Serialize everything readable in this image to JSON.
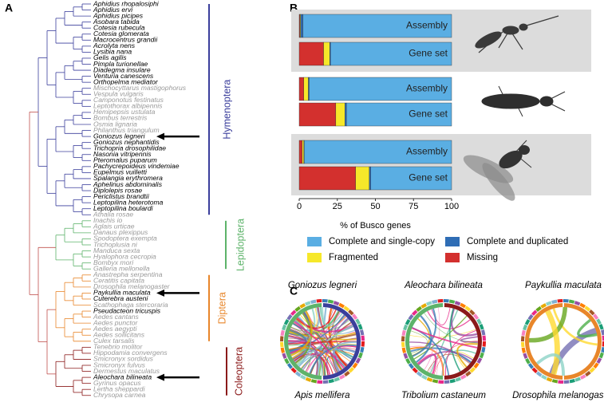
{
  "panels": {
    "a": "A",
    "b": "B",
    "c": "C"
  },
  "tree": {
    "clades": [
      {
        "name": "Hymenoptera",
        "color": "#3b3f9c",
        "leaves": [
          {
            "name": "Aphidius rhopalosiphi"
          },
          {
            "name": "Aphidius ervi"
          },
          {
            "name": "Aphidius picipes"
          },
          {
            "name": "Asobara tabida"
          },
          {
            "name": "Cotesia rubecula"
          },
          {
            "name": "Cotesia glomerata"
          },
          {
            "name": "Macrocentrus grandii"
          },
          {
            "name": "Acrolyta nens"
          },
          {
            "name": "Lysibia nana"
          },
          {
            "name": "Gelis agilis"
          },
          {
            "name": "Pimpla turionellae"
          },
          {
            "name": "Diadegma insulare"
          },
          {
            "name": "Venturia canescens"
          },
          {
            "name": "Orthopelma mediator"
          },
          {
            "name": "Mischocyttarus mastigophorus",
            "gray": true
          },
          {
            "name": "Vespula vulgaris",
            "gray": true
          },
          {
            "name": "Camponotus festinatus",
            "gray": true
          },
          {
            "name": "Leptothorax albipennis",
            "gray": true
          },
          {
            "name": "Hemipepsis ustulata",
            "gray": true
          },
          {
            "name": "Bombus terrestris",
            "gray": true
          },
          {
            "name": "Osmia lignaria",
            "gray": true
          },
          {
            "name": "Philanthus triangulum",
            "gray": true
          },
          {
            "name": "Goniozus legneri",
            "arrow": true
          },
          {
            "name": "Goniozus nephantidis"
          },
          {
            "name": "Trichopria drosophilidae"
          },
          {
            "name": "Nasonia vitripennis"
          },
          {
            "name": "Pteromalus puparum"
          },
          {
            "name": "Pachycrepoideus vindemiae"
          },
          {
            "name": "Eupelmus vuilletti"
          },
          {
            "name": "Spalangia erythromera"
          },
          {
            "name": "Aphelinus abdominalis"
          },
          {
            "name": "Diplolepis rosae"
          },
          {
            "name": "Periclistus brandtii"
          },
          {
            "name": "Leptopilina heterotoma"
          },
          {
            "name": "Leptopilina boulardi"
          },
          {
            "name": "Athalia rosae",
            "gray": true
          }
        ]
      },
      {
        "name": "Lepidoptera",
        "color": "#5db36a",
        "leaves": [
          {
            "name": "Inachis io",
            "gray": true
          },
          {
            "name": "Aglais urticae",
            "gray": true
          },
          {
            "name": "Danaus plexippus",
            "gray": true
          },
          {
            "name": "Spodoptera exempta",
            "gray": true
          },
          {
            "name": "Trichoplusia ni",
            "gray": true
          },
          {
            "name": "Manduca sexta",
            "gray": true
          },
          {
            "name": "Hyalophora cecropia",
            "gray": true
          },
          {
            "name": "Bombyx mori",
            "gray": true
          },
          {
            "name": "Galleria mellonella",
            "gray": true
          }
        ]
      },
      {
        "name": "Diptera",
        "color": "#e8862a",
        "leaves": [
          {
            "name": "Anastrepha serpentina",
            "gray": true
          },
          {
            "name": "Ceratitis capitata",
            "gray": true
          },
          {
            "name": "Drosophila melanogaster",
            "gray": true
          },
          {
            "name": "Paykullia maculata",
            "arrow": true
          },
          {
            "name": "Cuterebra austeni"
          },
          {
            "name": "Scathophaga stercoraria",
            "gray": true
          },
          {
            "name": "Pseudacteon tricuspis"
          },
          {
            "name": "Aedes cantans",
            "gray": true
          },
          {
            "name": "Aedes punctor",
            "gray": true
          },
          {
            "name": "Aedes aegypti",
            "gray": true
          },
          {
            "name": "Aedes sollicitans",
            "gray": true
          },
          {
            "name": "Culex tarsalis",
            "gray": true
          }
        ]
      },
      {
        "name": "Coleoptera",
        "color": "#8b1a1a",
        "leaves": [
          {
            "name": "Tenebrio molitor",
            "gray": true
          },
          {
            "name": "Hippodamia convergens",
            "gray": true
          },
          {
            "name": "Smicronyx sordidus",
            "gray": true
          },
          {
            "name": "Smicronyx fulvus",
            "gray": true
          },
          {
            "name": "Dermestus maculatus",
            "gray": true
          },
          {
            "name": "Aleochara bilineata",
            "arrow": true
          },
          {
            "name": "Gyrinus opacus",
            "gray": true
          },
          {
            "name": "Lertha sheppardi",
            "gray": true
          },
          {
            "name": "Chrysopa carnea",
            "gray": true
          }
        ]
      }
    ]
  },
  "chart_data": {
    "type": "bar",
    "orientation": "horizontal",
    "stacked": true,
    "categories": [
      "Assembly",
      "Gene set",
      "Assembly",
      "Gene set",
      "Assembly",
      "Gene set"
    ],
    "series": [
      {
        "name": "Complete and single-copy",
        "color": "#5aaee3",
        "values": [
          97.5,
          79.5,
          93.5,
          69,
          96.7,
          53
        ]
      },
      {
        "name": "Complete and duplicated",
        "color": "#2f6db5",
        "values": [
          1.5,
          0.5,
          0.5,
          1,
          0.3,
          1
        ]
      },
      {
        "name": "Fragmented",
        "color": "#f6e82a",
        "values": [
          0.5,
          4,
          3,
          6,
          1,
          9
        ]
      },
      {
        "name": "Missing",
        "color": "#d3302e",
        "values": [
          0.5,
          16,
          3,
          24,
          2,
          37
        ]
      }
    ],
    "xlim": [
      0,
      100
    ],
    "xticks": [
      0,
      25,
      50,
      75,
      100
    ],
    "xlabel": "% of Busco genes"
  },
  "circos": [
    {
      "title": "Goniozus legneri",
      "reference": "Apis mellifera"
    },
    {
      "title": "Aleochara bilineata",
      "reference": "Tribolium castaneum"
    },
    {
      "title": "Paykullia maculata",
      "reference": "Drosophila melanogaster"
    }
  ]
}
